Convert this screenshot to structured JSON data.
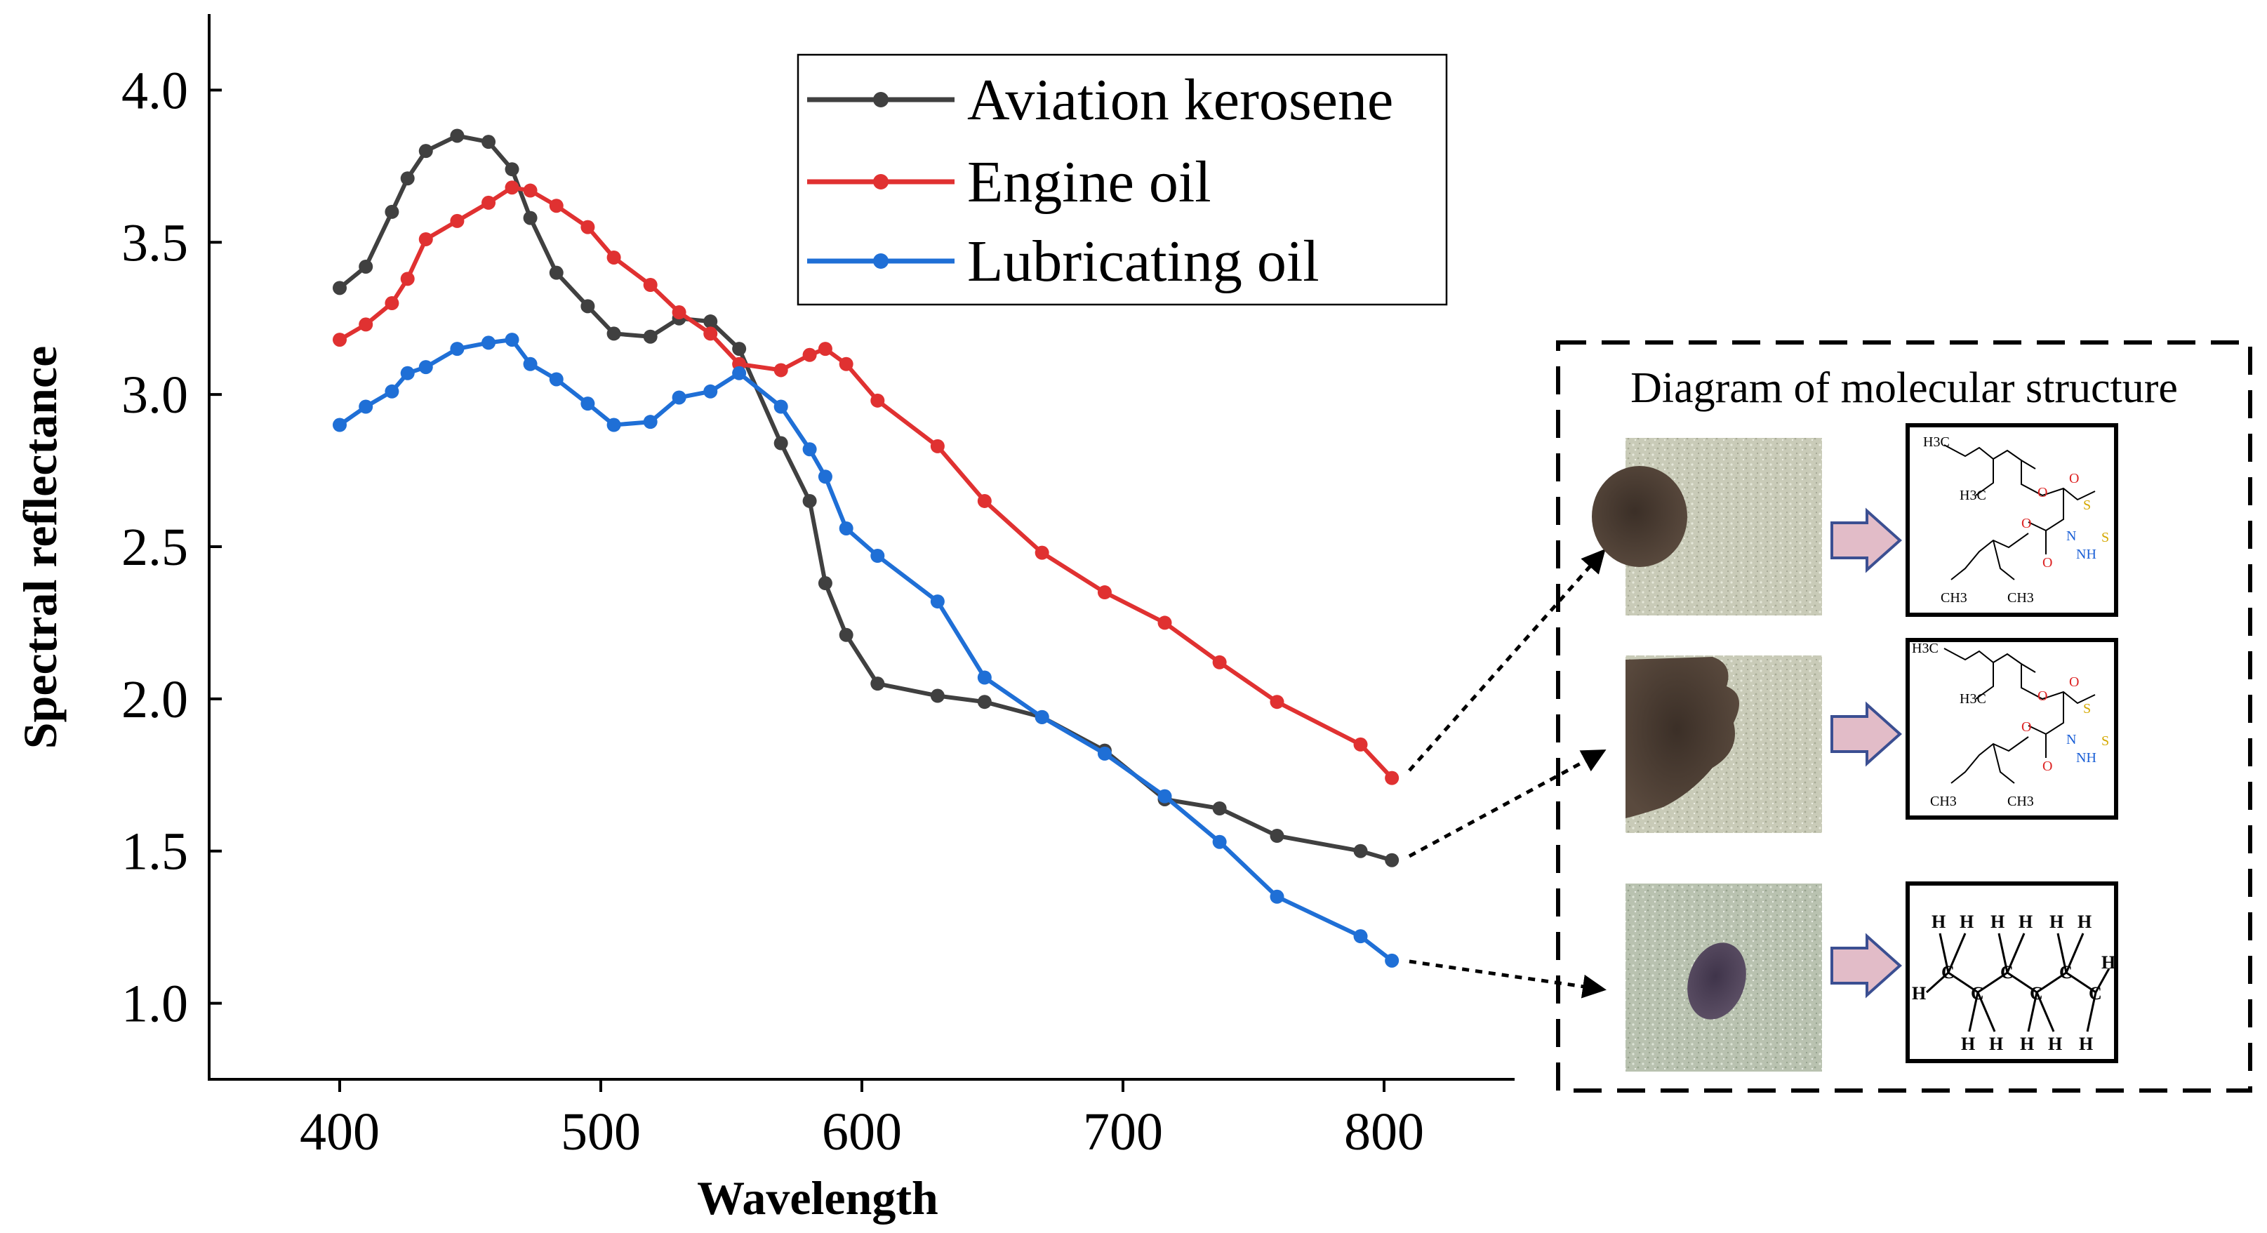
{
  "chart_data": {
    "type": "line",
    "xlabel": "Wavelength",
    "ylabel": "Spectral reflectance",
    "xlim": [
      350,
      850
    ],
    "ylim": [
      0.75,
      4.25
    ],
    "x_ticks": [
      "400",
      "500",
      "600",
      "700",
      "800"
    ],
    "y_ticks": [
      "1.0",
      "1.5",
      "2.0",
      "2.5",
      "3.0",
      "3.5",
      "4.0"
    ],
    "legend_position": "top-center",
    "series": [
      {
        "name": "Aviation kerosene",
        "color": "#404040",
        "x": [
          400,
          410,
          420,
          426,
          433,
          445,
          457,
          466,
          473,
          483,
          495,
          505,
          519,
          530,
          542,
          553,
          569,
          580,
          586,
          594,
          606,
          629,
          647,
          669,
          693,
          716,
          737,
          759,
          791,
          803
        ],
        "y": [
          3.35,
          3.42,
          3.6,
          3.71,
          3.8,
          3.85,
          3.83,
          3.74,
          3.58,
          3.4,
          3.29,
          3.2,
          3.19,
          3.25,
          3.24,
          3.15,
          2.84,
          2.65,
          2.38,
          2.21,
          2.05,
          2.01,
          1.99,
          1.94,
          1.83,
          1.67,
          1.64,
          1.55,
          1.5,
          1.47
        ]
      },
      {
        "name": "Engine oil",
        "color": "#e03131",
        "x": [
          400,
          410,
          420,
          426,
          433,
          445,
          457,
          466,
          473,
          483,
          495,
          505,
          519,
          530,
          542,
          553,
          569,
          580,
          586,
          594,
          606,
          629,
          647,
          669,
          693,
          716,
          737,
          759,
          791,
          803
        ],
        "y": [
          3.18,
          3.23,
          3.3,
          3.38,
          3.51,
          3.57,
          3.63,
          3.68,
          3.67,
          3.62,
          3.55,
          3.45,
          3.36,
          3.27,
          3.2,
          3.1,
          3.08,
          3.13,
          3.15,
          3.1,
          2.98,
          2.83,
          2.65,
          2.48,
          2.35,
          2.25,
          2.12,
          1.99,
          1.85,
          1.74
        ]
      },
      {
        "name": "Lubricating oil",
        "color": "#1f6fd6",
        "x": [
          400,
          410,
          420,
          426,
          433,
          445,
          457,
          466,
          473,
          483,
          495,
          505,
          519,
          530,
          542,
          553,
          569,
          580,
          586,
          594,
          606,
          629,
          647,
          669,
          693,
          716,
          737,
          759,
          791,
          803
        ],
        "y": [
          2.9,
          2.96,
          3.01,
          3.07,
          3.09,
          3.15,
          3.17,
          3.18,
          3.1,
          3.05,
          2.97,
          2.9,
          2.91,
          2.99,
          3.01,
          3.07,
          2.96,
          2.82,
          2.73,
          2.56,
          2.47,
          2.32,
          2.07,
          1.94,
          1.82,
          1.68,
          1.53,
          1.35,
          1.22,
          1.14
        ]
      }
    ]
  },
  "panel": {
    "title": "Diagram of molecular structure"
  },
  "molecule_labels": {
    "h3c": "H3C",
    "ch3": "CH3",
    "o": "O",
    "s": "S",
    "n": "N",
    "nh": "NH",
    "h": "H",
    "c": "C"
  }
}
